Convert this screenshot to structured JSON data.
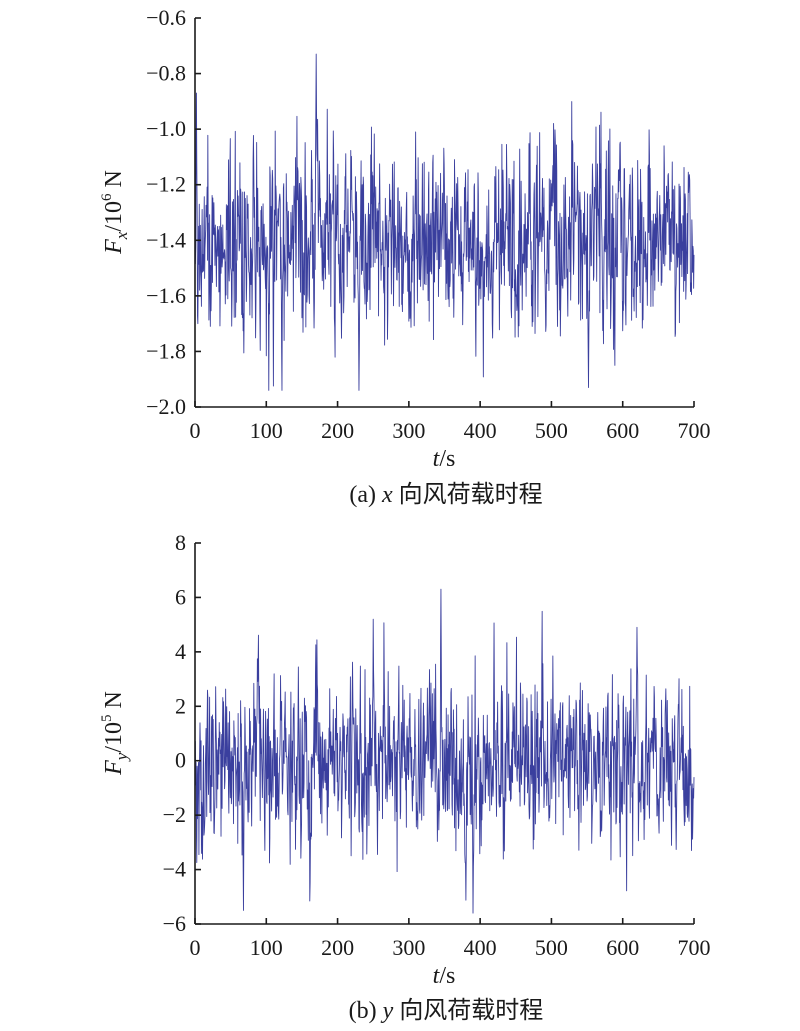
{
  "chart_data": [
    {
      "id": "a",
      "type": "line",
      "title": "",
      "caption": {
        "prefix": "(a) ",
        "var": "x",
        "rest": " 向风荷载时程"
      },
      "xlabel": {
        "var": "t",
        "rest": "/s"
      },
      "ylabel": {
        "var": "F",
        "sub": "x",
        "mid": "/10",
        "sup": "6",
        "unit": " N"
      },
      "xlim": [
        0,
        700
      ],
      "ylim": [
        -2.0,
        -0.6
      ],
      "xticks": [
        0,
        100,
        200,
        300,
        400,
        500,
        600,
        700
      ],
      "xtick_labels": [
        "0",
        "100",
        "200",
        "300",
        "400",
        "500",
        "600",
        "700"
      ],
      "yticks": [
        -0.6,
        -0.8,
        -1.0,
        -1.2,
        -1.4,
        -1.6,
        -1.8,
        -2.0
      ],
      "ytick_labels": [
        "−0.6",
        "−0.8",
        "−1.0",
        "−1.2",
        "−1.4",
        "−1.6",
        "−1.8",
        "−2.0"
      ],
      "grid": false,
      "legend": "none",
      "series_color": "#3a3f9e",
      "series": [
        {
          "name": "",
          "sampling_dt": 0.5,
          "mean": -1.4,
          "std": 0.165,
          "y_range": [
            -1.94,
            -0.73
          ],
          "peaks": [
            {
              "x": 2,
              "y": -0.87
            },
            {
              "x": 170,
              "y": -0.73
            },
            {
              "x": 230,
              "y": -1.94
            },
            {
              "x": 552,
              "y": -1.93
            }
          ]
        }
      ]
    },
    {
      "id": "b",
      "type": "line",
      "title": "",
      "caption": {
        "prefix": "(b) ",
        "var": "y",
        "rest": " 向风荷载时程"
      },
      "xlabel": {
        "var": "t",
        "rest": "/s"
      },
      "ylabel": {
        "var": "F",
        "sub": "y",
        "mid": "/10",
        "sup": "5",
        "unit": " N"
      },
      "xlim": [
        0,
        700
      ],
      "ylim": [
        -6,
        8
      ],
      "xticks": [
        0,
        100,
        200,
        300,
        400,
        500,
        600,
        700
      ],
      "xtick_labels": [
        "0",
        "100",
        "200",
        "300",
        "400",
        "500",
        "600",
        "700"
      ],
      "yticks": [
        8,
        6,
        4,
        2,
        0,
        -2,
        -4,
        -6
      ],
      "ytick_labels": [
        "8",
        "6",
        "4",
        "2",
        "0",
        "−2",
        "−4",
        "−6"
      ],
      "grid": false,
      "legend": "none",
      "series_color": "#3a3f9e",
      "series": [
        {
          "name": "",
          "sampling_dt": 0.5,
          "mean": 0,
          "std": 1.5,
          "y_range": [
            -5.6,
            6.3
          ],
          "peaks": [
            {
              "x": 345,
              "y": 6.3
            },
            {
              "x": 250,
              "y": 5.2
            },
            {
              "x": 620,
              "y": 4.9
            },
            {
              "x": 68,
              "y": -5.5
            },
            {
              "x": 390,
              "y": -5.6
            }
          ]
        }
      ]
    }
  ]
}
